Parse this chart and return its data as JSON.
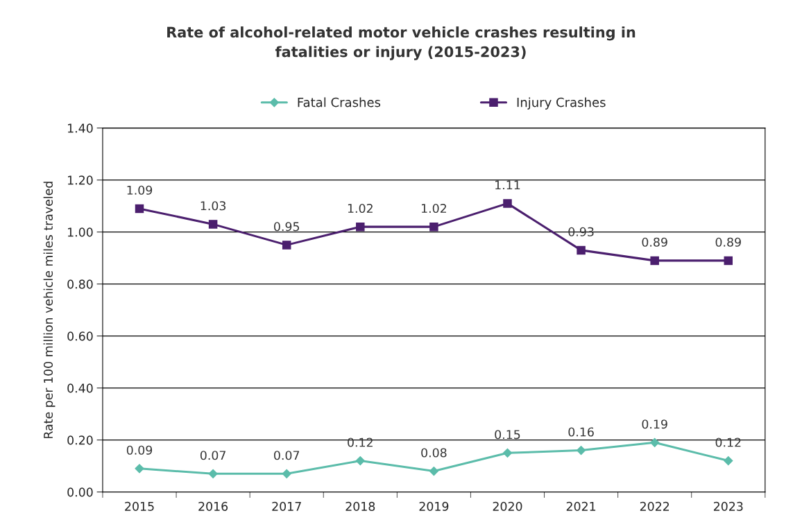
{
  "chart_data": {
    "type": "line",
    "title": "Rate of alcohol-related motor vehicle crashes resulting in\nfatalities or injury (2015-2023)",
    "ylabel": "Rate per 100 million vehicle miles traveled",
    "categories": [
      "2015",
      "2016",
      "2017",
      "2018",
      "2019",
      "2020",
      "2021",
      "2022",
      "2023"
    ],
    "series": [
      {
        "name": "Fatal Crashes",
        "color": "#5bbcaa",
        "marker": "diamond",
        "values": [
          0.09,
          0.07,
          0.07,
          0.12,
          0.08,
          0.15,
          0.16,
          0.19,
          0.12
        ]
      },
      {
        "name": "Injury Crashes",
        "color": "#4b1f6e",
        "marker": "square",
        "values": [
          1.09,
          1.03,
          0.95,
          1.02,
          1.02,
          1.11,
          0.93,
          0.89,
          0.89
        ]
      }
    ],
    "ylim": [
      0,
      1.4
    ],
    "yticks": [
      {
        "value": 0,
        "label": "0.00"
      },
      {
        "value": 0.2,
        "label": "0.20"
      },
      {
        "value": 0.4,
        "label": "0.40"
      },
      {
        "value": 0.6,
        "label": "0.60"
      },
      {
        "value": 0.8,
        "label": "0.80"
      },
      {
        "value": 1.0,
        "label": "1.00"
      },
      {
        "value": 1.2,
        "label": "1.20"
      },
      {
        "value": 1.4,
        "label": "1.40"
      }
    ],
    "grid": "y",
    "legend": "top",
    "data_labels": true,
    "line_style": "solid"
  }
}
